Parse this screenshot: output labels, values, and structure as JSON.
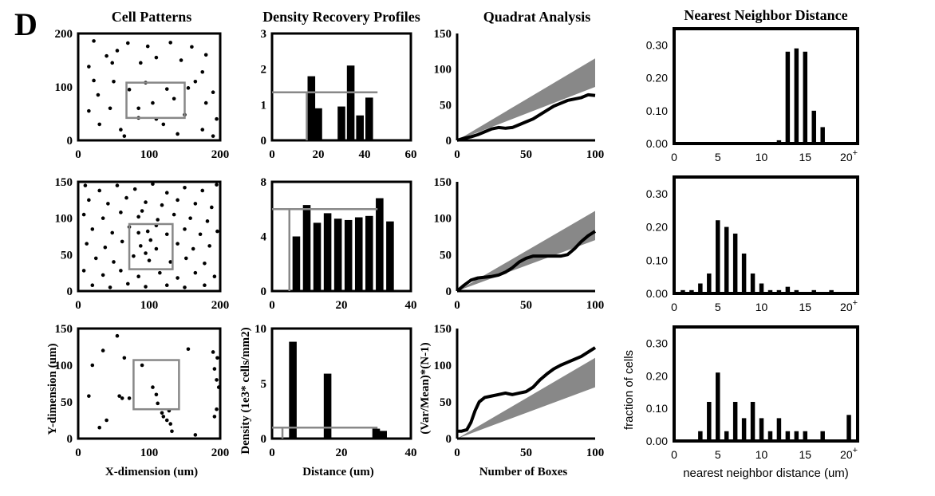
{
  "panel_letter": "D",
  "column_titles": [
    "Cell Patterns",
    "Density Recovery Profiles",
    "Quadrat Analysis",
    "Nearest Neighbor Distance"
  ],
  "axis_labels": {
    "cell_x": "X-dimension (um)",
    "cell_y": "Y-dimension (um)",
    "drp_x": "Distance (um)",
    "drp_y": "Density (1e3* cells/mm2)",
    "quad_x": "Number of Boxes",
    "quad_y": "(Var/Mean)*(N-1)",
    "nnd_x": "nearest neighbor distance (um)",
    "nnd_y": "fraction of cells"
  },
  "chart_data": [
    {
      "type": "scatter",
      "name": "cell-pattern-row-1",
      "xlim": [
        0,
        200
      ],
      "ylim": [
        0,
        200
      ],
      "xticks": [
        "0",
        "100",
        "200"
      ],
      "yticks": [
        "0",
        "100",
        "200"
      ],
      "points": [
        [
          22,
          186
        ],
        [
          40,
          158
        ],
        [
          55,
          168
        ],
        [
          70,
          182
        ],
        [
          98,
          176
        ],
        [
          130,
          183
        ],
        [
          160,
          175
        ],
        [
          180,
          160
        ],
        [
          15,
          138
        ],
        [
          48,
          145
        ],
        [
          88,
          145
        ],
        [
          110,
          155
        ],
        [
          145,
          150
        ],
        [
          175,
          128
        ],
        [
          22,
          112
        ],
        [
          50,
          110
        ],
        [
          95,
          108
        ],
        [
          125,
          96
        ],
        [
          165,
          110
        ],
        [
          190,
          90
        ],
        [
          28,
          85
        ],
        [
          72,
          95
        ],
        [
          105,
          70
        ],
        [
          135,
          78
        ],
        [
          180,
          70
        ],
        [
          15,
          55
        ],
        [
          45,
          60
        ],
        [
          85,
          60
        ],
        [
          150,
          48
        ],
        [
          195,
          40
        ],
        [
          30,
          30
        ],
        [
          60,
          20
        ],
        [
          120,
          30
        ],
        [
          175,
          20
        ],
        [
          65,
          8
        ],
        [
          140,
          12
        ],
        [
          190,
          8
        ],
        [
          85,
          42
        ],
        [
          110,
          40
        ],
        [
          155,
          98
        ]
      ],
      "box": {
        "x0": 68,
        "x1": 150,
        "y0": 42,
        "y1": 108
      }
    },
    {
      "type": "scatter",
      "name": "cell-pattern-row-2",
      "xlim": [
        0,
        200
      ],
      "ylim": [
        0,
        150
      ],
      "xticks": [
        "0",
        "100",
        "200"
      ],
      "yticks": [
        "0",
        "50",
        "100",
        "150"
      ],
      "points": [
        [
          10,
          145
        ],
        [
          30,
          138
        ],
        [
          55,
          145
        ],
        [
          80,
          140
        ],
        [
          105,
          147
        ],
        [
          125,
          135
        ],
        [
          150,
          142
        ],
        [
          175,
          138
        ],
        [
          195,
          146
        ],
        [
          15,
          125
        ],
        [
          42,
          120
        ],
        [
          68,
          128
        ],
        [
          95,
          122
        ],
        [
          118,
          118
        ],
        [
          140,
          125
        ],
        [
          165,
          120
        ],
        [
          188,
          115
        ],
        [
          8,
          105
        ],
        [
          35,
          100
        ],
        [
          60,
          108
        ],
        [
          85,
          102
        ],
        [
          112,
          98
        ],
        [
          135,
          105
        ],
        [
          158,
          100
        ],
        [
          182,
          96
        ],
        [
          20,
          85
        ],
        [
          48,
          80
        ],
        [
          72,
          88
        ],
        [
          98,
          82
        ],
        [
          125,
          78
        ],
        [
          150,
          85
        ],
        [
          172,
          78
        ],
        [
          196,
          82
        ],
        [
          12,
          65
        ],
        [
          38,
          60
        ],
        [
          62,
          68
        ],
        [
          88,
          62
        ],
        [
          110,
          58
        ],
        [
          140,
          65
        ],
        [
          162,
          58
        ],
        [
          185,
          62
        ],
        [
          25,
          45
        ],
        [
          50,
          40
        ],
        [
          78,
          48
        ],
        [
          100,
          42
        ],
        [
          130,
          40
        ],
        [
          152,
          45
        ],
        [
          178,
          38
        ],
        [
          8,
          28
        ],
        [
          35,
          22
        ],
        [
          60,
          28
        ],
        [
          85,
          20
        ],
        [
          115,
          25
        ],
        [
          140,
          18
        ],
        [
          165,
          25
        ],
        [
          192,
          20
        ],
        [
          20,
          8
        ],
        [
          45,
          5
        ],
        [
          70,
          10
        ],
        [
          95,
          6
        ],
        [
          125,
          8
        ],
        [
          150,
          5
        ],
        [
          178,
          8
        ],
        [
          90,
          110
        ],
        [
          102,
          70
        ],
        [
          95,
          52
        ],
        [
          110,
          90
        ],
        [
          85,
          80
        ]
      ],
      "box": {
        "x0": 72,
        "x1": 133,
        "y0": 30,
        "y1": 92
      }
    },
    {
      "type": "scatter",
      "name": "cell-pattern-row-3",
      "xlim": [
        0,
        200
      ],
      "ylim": [
        0,
        150
      ],
      "xticks": [
        "0",
        "100",
        "200"
      ],
      "yticks": [
        "0",
        "50",
        "100",
        "150"
      ],
      "points": [
        [
          55,
          140
        ],
        [
          65,
          110
        ],
        [
          35,
          120
        ],
        [
          20,
          100
        ],
        [
          30,
          15
        ],
        [
          58,
          58
        ],
        [
          62,
          55
        ],
        [
          72,
          55
        ],
        [
          120,
          30
        ],
        [
          125,
          25
        ],
        [
          130,
          20
        ],
        [
          118,
          35
        ],
        [
          128,
          38
        ],
        [
          112,
          48
        ],
        [
          110,
          60
        ],
        [
          105,
          70
        ],
        [
          132,
          10
        ],
        [
          190,
          118
        ],
        [
          196,
          110
        ],
        [
          192,
          95
        ],
        [
          195,
          80
        ],
        [
          198,
          70
        ],
        [
          195,
          40
        ],
        [
          192,
          30
        ],
        [
          165,
          5
        ],
        [
          40,
          25
        ],
        [
          90,
          100
        ],
        [
          155,
          122
        ],
        [
          15,
          58
        ]
      ],
      "box": {
        "x0": 78,
        "x1": 142,
        "y0": 40,
        "y1": 107
      }
    },
    {
      "type": "bar",
      "name": "drp-row-1",
      "xlim": [
        0,
        60
      ],
      "ylim": [
        0,
        3
      ],
      "xticks": [
        "0",
        "20",
        "40",
        "60"
      ],
      "yticks": [
        "0",
        "1",
        "2",
        "3"
      ],
      "x": [
        17,
        20,
        30,
        34,
        38,
        42
      ],
      "values": [
        1.8,
        0.9,
        0.95,
        2.1,
        0.7,
        1.2
      ],
      "mean_line": 1.35,
      "effective_radius": 15
    },
    {
      "type": "bar",
      "name": "drp-row-2",
      "xlim": [
        0,
        40
      ],
      "ylim": [
        0,
        8
      ],
      "xticks": [
        "0",
        "20",
        "40"
      ],
      "yticks": [
        "0",
        "4",
        "8"
      ],
      "x": [
        7,
        10,
        13,
        16,
        19,
        22,
        25,
        28,
        31,
        34
      ],
      "values": [
        4.0,
        6.3,
        5.0,
        5.7,
        5.3,
        5.2,
        5.4,
        5.5,
        6.8,
        5.1
      ],
      "mean_line": 6.0,
      "effective_radius": 5
    },
    {
      "type": "bar",
      "name": "drp-row-3",
      "xlim": [
        0,
        40
      ],
      "ylim": [
        0,
        10
      ],
      "xticks": [
        "0",
        "20",
        "40"
      ],
      "yticks": [
        "0",
        "5",
        "10"
      ],
      "x": [
        6,
        16,
        30,
        32
      ],
      "values": [
        8.8,
        5.9,
        0.9,
        0.7
      ],
      "mean_line": 1.0,
      "effective_radius": 3
    },
    {
      "type": "line",
      "name": "quadrat-row-1",
      "xlim": [
        0,
        100
      ],
      "ylim": [
        0,
        150
      ],
      "xticks": [
        "0",
        "50",
        "100"
      ],
      "yticks": [
        "0",
        "50",
        "100",
        "150"
      ],
      "band_upper": [
        [
          0,
          0
        ],
        [
          100,
          115
        ]
      ],
      "band_lower": [
        [
          0,
          0
        ],
        [
          100,
          75
        ]
      ],
      "x": [
        0,
        5,
        10,
        15,
        20,
        25,
        30,
        35,
        40,
        45,
        50,
        55,
        60,
        65,
        70,
        75,
        80,
        85,
        90,
        95,
        100
      ],
      "values": [
        0,
        3,
        5,
        8,
        12,
        16,
        18,
        17,
        18,
        22,
        26,
        30,
        36,
        42,
        48,
        52,
        56,
        58,
        60,
        64,
        63
      ]
    },
    {
      "type": "line",
      "name": "quadrat-row-2",
      "xlim": [
        0,
        100
      ],
      "ylim": [
        0,
        150
      ],
      "xticks": [
        "0",
        "50",
        "100"
      ],
      "yticks": [
        "0",
        "50",
        "100",
        "150"
      ],
      "band_upper": [
        [
          0,
          0
        ],
        [
          100,
          110
        ]
      ],
      "band_lower": [
        [
          0,
          0
        ],
        [
          100,
          70
        ]
      ],
      "x": [
        0,
        5,
        10,
        15,
        20,
        25,
        30,
        35,
        40,
        45,
        50,
        55,
        60,
        65,
        70,
        75,
        80,
        85,
        90,
        95,
        100
      ],
      "values": [
        0,
        8,
        15,
        18,
        19,
        20,
        22,
        26,
        32,
        40,
        45,
        48,
        48,
        48,
        48,
        48,
        50,
        58,
        68,
        76,
        82
      ]
    },
    {
      "type": "line",
      "name": "quadrat-row-3",
      "xlim": [
        0,
        100
      ],
      "ylim": [
        0,
        150
      ],
      "xticks": [
        "0",
        "50",
        "100"
      ],
      "yticks": [
        "0",
        "50",
        "100",
        "150"
      ],
      "band_upper": [
        [
          0,
          0
        ],
        [
          100,
          110
        ]
      ],
      "band_lower": [
        [
          0,
          0
        ],
        [
          100,
          70
        ]
      ],
      "x": [
        0,
        3,
        7,
        10,
        13,
        16,
        20,
        25,
        30,
        35,
        40,
        45,
        50,
        55,
        60,
        65,
        70,
        75,
        80,
        85,
        90,
        95,
        100
      ],
      "values": [
        10,
        10,
        12,
        22,
        38,
        50,
        56,
        58,
        60,
        62,
        60,
        62,
        64,
        70,
        80,
        88,
        95,
        100,
        104,
        108,
        112,
        118,
        124
      ]
    },
    {
      "type": "bar",
      "name": "nnd-row-1",
      "xlim": [
        0,
        21
      ],
      "ylim": [
        0,
        0.35
      ],
      "xticks": [
        "0",
        "5",
        "10",
        "15",
        "20+"
      ],
      "yticks": [
        "0.00",
        "0.10",
        "0.20",
        "0.30"
      ],
      "x": [
        12,
        13,
        14,
        15,
        16,
        17
      ],
      "values": [
        0.01,
        0.28,
        0.29,
        0.28,
        0.1,
        0.05
      ]
    },
    {
      "type": "bar",
      "name": "nnd-row-2",
      "xlim": [
        0,
        21
      ],
      "ylim": [
        0,
        0.35
      ],
      "xticks": [
        "0",
        "5",
        "10",
        "15",
        "20+"
      ],
      "yticks": [
        "0.00",
        "0.10",
        "0.20",
        "0.30"
      ],
      "x": [
        1,
        2,
        3,
        4,
        5,
        6,
        7,
        8,
        9,
        10,
        11,
        12,
        13,
        14,
        16,
        18
      ],
      "values": [
        0.01,
        0.01,
        0.03,
        0.06,
        0.22,
        0.2,
        0.18,
        0.12,
        0.06,
        0.03,
        0.01,
        0.01,
        0.02,
        0.01,
        0.01,
        0.01
      ]
    },
    {
      "type": "bar",
      "name": "nnd-row-3",
      "xlim": [
        0,
        21
      ],
      "ylim": [
        0,
        0.35
      ],
      "xticks": [
        "0",
        "5",
        "10",
        "15",
        "20+"
      ],
      "yticks": [
        "0.00",
        "0.10",
        "0.20",
        "0.30"
      ],
      "x": [
        3,
        4,
        5,
        6,
        7,
        8,
        9,
        10,
        11,
        12,
        13,
        14,
        15,
        17,
        20
      ],
      "values": [
        0.03,
        0.12,
        0.21,
        0.03,
        0.12,
        0.07,
        0.12,
        0.07,
        0.03,
        0.07,
        0.03,
        0.03,
        0.03,
        0.03,
        0.08
      ]
    }
  ]
}
